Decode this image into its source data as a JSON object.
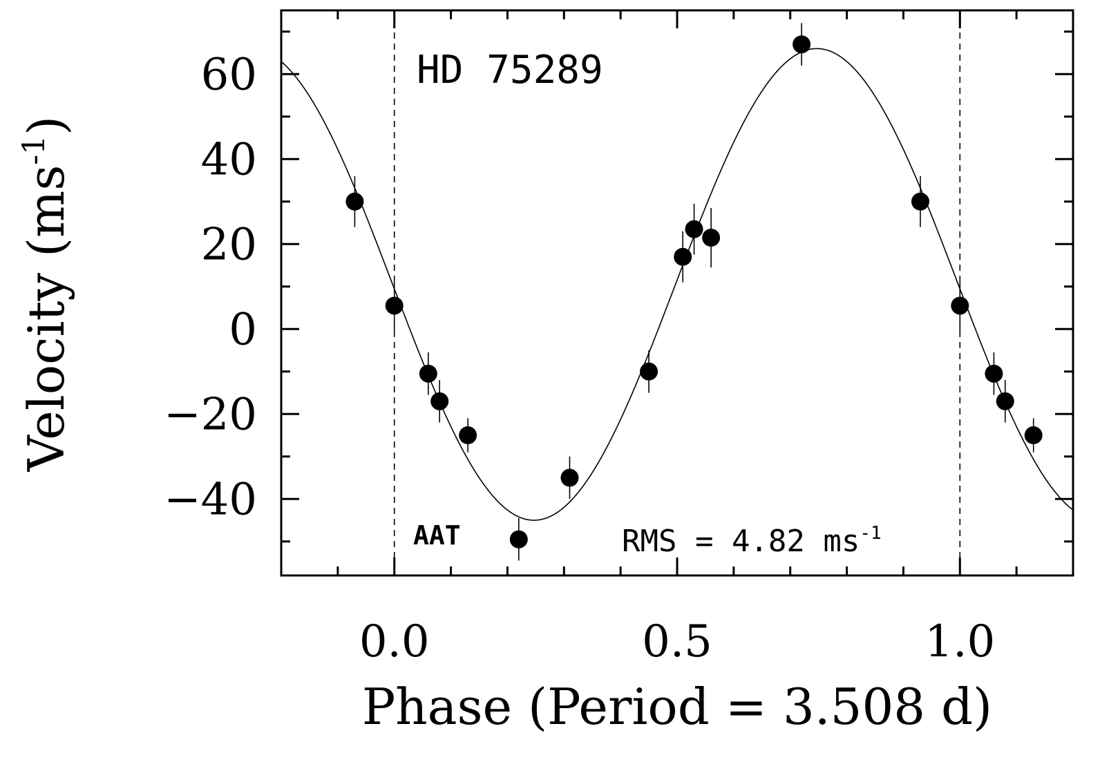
{
  "chart_data": {
    "type": "scatter",
    "title": "HD 75289",
    "xlabel": "Phase (Period = 3.508 d)",
    "ylabel": "Velocity (ms",
    "ylabel_sup": "-1",
    "xlim": [
      -0.2,
      1.2
    ],
    "ylim": [
      -58,
      75
    ],
    "xticks": [
      0.0,
      0.5,
      1.0
    ],
    "xtick_labels": [
      "0.0",
      "0.5",
      "1.0"
    ],
    "yticks": [
      -40,
      -20,
      0,
      20,
      40,
      60
    ],
    "ytick_labels": [
      "−40",
      "−20",
      "0",
      "20",
      "40",
      "60"
    ],
    "vlines": [
      0.0,
      1.0
    ],
    "annotations": {
      "instrument": "AAT",
      "rms_label": "RMS = 4.82 ms",
      "rms_sup": "-1"
    },
    "fit_model": {
      "type": "sinusoid",
      "period_phase": 1.0,
      "amplitude": 55.5,
      "offset": 10.5,
      "phase_of_max": 0.747
    },
    "series": [
      {
        "name": "AAT",
        "x": [
          -0.07,
          0.0,
          0.06,
          0.08,
          0.13,
          0.22,
          0.31,
          0.45,
          0.51,
          0.53,
          0.56,
          0.72,
          0.93,
          1.0,
          1.06,
          1.08,
          1.13
        ],
        "y": [
          30,
          5.5,
          -10.5,
          -17,
          -25,
          -49.5,
          -35,
          -10,
          17,
          23.5,
          21.5,
          67,
          30,
          5.5,
          -10.5,
          -17,
          -25
        ],
        "err": [
          6,
          6,
          5,
          5,
          4,
          5,
          5,
          5,
          6,
          6,
          7,
          5,
          6,
          6,
          5,
          5,
          4
        ]
      }
    ]
  }
}
